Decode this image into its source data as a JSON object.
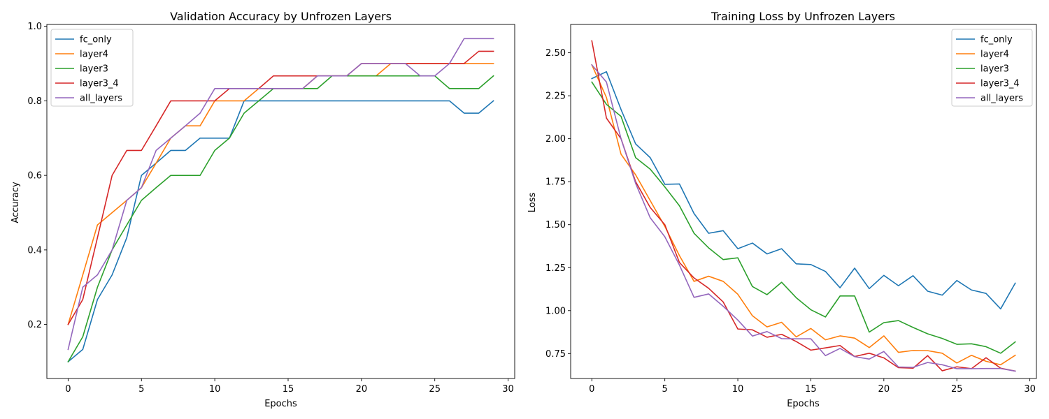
{
  "colors": {
    "fc_only": "#1f77b4",
    "layer4": "#ff7f0e",
    "layer3": "#2ca02c",
    "layer3_4": "#d62728",
    "all_layers": "#9467bd"
  },
  "chart_data": [
    {
      "type": "line",
      "title": "Validation Accuracy by Unfrozen Layers",
      "xlabel": "Epochs",
      "ylabel": "Accuracy",
      "xlim": [
        -1.45,
        30.45
      ],
      "ylim": [
        0.055,
        1.005
      ],
      "xticks": [
        0,
        5,
        10,
        15,
        20,
        25,
        30
      ],
      "yticks": [
        0.2,
        0.4,
        0.6,
        0.8,
        1.0
      ],
      "ytick_labels": [
        "0.2",
        "0.4",
        "0.6",
        "0.8",
        "1.0"
      ],
      "grid": false,
      "legend_position": "top-left",
      "x": [
        0,
        1,
        2,
        3,
        4,
        5,
        6,
        7,
        8,
        9,
        10,
        11,
        12,
        13,
        14,
        15,
        16,
        17,
        18,
        19,
        20,
        21,
        22,
        23,
        24,
        25,
        26,
        27,
        28,
        29
      ],
      "series": [
        {
          "name": "fc_only",
          "values": [
            0.1,
            0.133,
            0.267,
            0.333,
            0.433,
            0.6,
            0.633,
            0.667,
            0.667,
            0.7,
            0.7,
            0.7,
            0.8,
            0.8,
            0.8,
            0.8,
            0.8,
            0.8,
            0.8,
            0.8,
            0.8,
            0.8,
            0.8,
            0.8,
            0.8,
            0.8,
            0.8,
            0.767,
            0.767,
            0.8
          ]
        },
        {
          "name": "layer4",
          "values": [
            0.2,
            0.333,
            0.467,
            0.5,
            0.533,
            0.567,
            0.633,
            0.7,
            0.733,
            0.733,
            0.8,
            0.8,
            0.8,
            0.833,
            0.833,
            0.833,
            0.833,
            0.867,
            0.867,
            0.867,
            0.867,
            0.867,
            0.9,
            0.9,
            0.9,
            0.9,
            0.9,
            0.9,
            0.9,
            0.9
          ]
        },
        {
          "name": "layer3",
          "values": [
            0.1,
            0.167,
            0.3,
            0.4,
            0.467,
            0.533,
            0.567,
            0.6,
            0.6,
            0.6,
            0.667,
            0.7,
            0.767,
            0.8,
            0.833,
            0.833,
            0.833,
            0.833,
            0.867,
            0.867,
            0.867,
            0.867,
            0.867,
            0.867,
            0.867,
            0.867,
            0.833,
            0.833,
            0.833,
            0.867
          ]
        },
        {
          "name": "layer3_4",
          "values": [
            0.2,
            0.267,
            0.433,
            0.6,
            0.667,
            0.667,
            0.733,
            0.8,
            0.8,
            0.8,
            0.8,
            0.833,
            0.833,
            0.833,
            0.867,
            0.867,
            0.867,
            0.867,
            0.867,
            0.867,
            0.9,
            0.9,
            0.9,
            0.9,
            0.9,
            0.9,
            0.9,
            0.9,
            0.933,
            0.933
          ]
        },
        {
          "name": "all_layers",
          "values": [
            0.133,
            0.3,
            0.333,
            0.4,
            0.533,
            0.567,
            0.667,
            0.7,
            0.733,
            0.767,
            0.833,
            0.833,
            0.833,
            0.833,
            0.833,
            0.833,
            0.833,
            0.867,
            0.867,
            0.867,
            0.9,
            0.9,
            0.9,
            0.9,
            0.867,
            0.867,
            0.9,
            0.967,
            0.967,
            0.967
          ]
        }
      ]
    },
    {
      "type": "line",
      "title": "Training Loss by Unfrozen Layers",
      "xlabel": "Epochs",
      "ylabel": "Loss",
      "xlim": [
        -1.45,
        30.45
      ],
      "ylim": [
        0.605,
        2.665
      ],
      "xticks": [
        0,
        5,
        10,
        15,
        20,
        25,
        30
      ],
      "yticks": [
        0.75,
        1.0,
        1.25,
        1.5,
        1.75,
        2.0,
        2.25,
        2.5
      ],
      "ytick_labels": [
        "0.75",
        "1.00",
        "1.25",
        "1.50",
        "1.75",
        "2.00",
        "2.25",
        "2.50"
      ],
      "grid": false,
      "legend_position": "top-right",
      "x": [
        0,
        1,
        2,
        3,
        4,
        5,
        6,
        7,
        8,
        9,
        10,
        11,
        12,
        13,
        14,
        15,
        16,
        17,
        18,
        19,
        20,
        21,
        22,
        23,
        24,
        25,
        26,
        27,
        28,
        29
      ],
      "series": [
        {
          "name": "fc_only",
          "values": [
            2.35,
            2.39,
            2.17,
            1.97,
            1.89,
            1.735,
            1.737,
            1.565,
            1.45,
            1.465,
            1.36,
            1.393,
            1.33,
            1.36,
            1.272,
            1.268,
            1.228,
            1.133,
            1.247,
            1.128,
            1.205,
            1.145,
            1.203,
            1.113,
            1.09,
            1.175,
            1.12,
            1.1,
            1.01,
            1.16
          ]
        },
        {
          "name": "layer4",
          "values": [
            2.43,
            2.24,
            1.91,
            1.79,
            1.64,
            1.49,
            1.32,
            1.17,
            1.2,
            1.17,
            1.095,
            0.97,
            0.905,
            0.932,
            0.847,
            0.896,
            0.83,
            0.853,
            0.84,
            0.785,
            0.853,
            0.757,
            0.768,
            0.767,
            0.752,
            0.695,
            0.74,
            0.705,
            0.685,
            0.74
          ]
        },
        {
          "name": "layer3",
          "values": [
            2.33,
            2.2,
            2.13,
            1.89,
            1.823,
            1.72,
            1.61,
            1.45,
            1.365,
            1.297,
            1.307,
            1.14,
            1.093,
            1.165,
            1.075,
            1.005,
            0.963,
            1.085,
            1.085,
            0.875,
            0.93,
            0.942,
            0.902,
            0.865,
            0.838,
            0.804,
            0.807,
            0.79,
            0.752,
            0.818
          ]
        },
        {
          "name": "layer3_4",
          "values": [
            2.57,
            2.12,
            2.0,
            1.75,
            1.6,
            1.5,
            1.28,
            1.19,
            1.13,
            1.05,
            0.893,
            0.888,
            0.845,
            0.862,
            0.82,
            0.77,
            0.783,
            0.797,
            0.733,
            0.752,
            0.725,
            0.668,
            0.665,
            0.738,
            0.65,
            0.673,
            0.662,
            0.726,
            0.665,
            0.648
          ]
        },
        {
          "name": "all_layers",
          "values": [
            2.43,
            2.33,
            2.0,
            1.74,
            1.54,
            1.43,
            1.265,
            1.077,
            1.097,
            1.025,
            0.945,
            0.852,
            0.878,
            0.837,
            0.836,
            0.836,
            0.738,
            0.78,
            0.732,
            0.718,
            0.762,
            0.672,
            0.67,
            0.698,
            0.685,
            0.662,
            0.662,
            0.663,
            0.663,
            0.648
          ]
        }
      ]
    }
  ]
}
